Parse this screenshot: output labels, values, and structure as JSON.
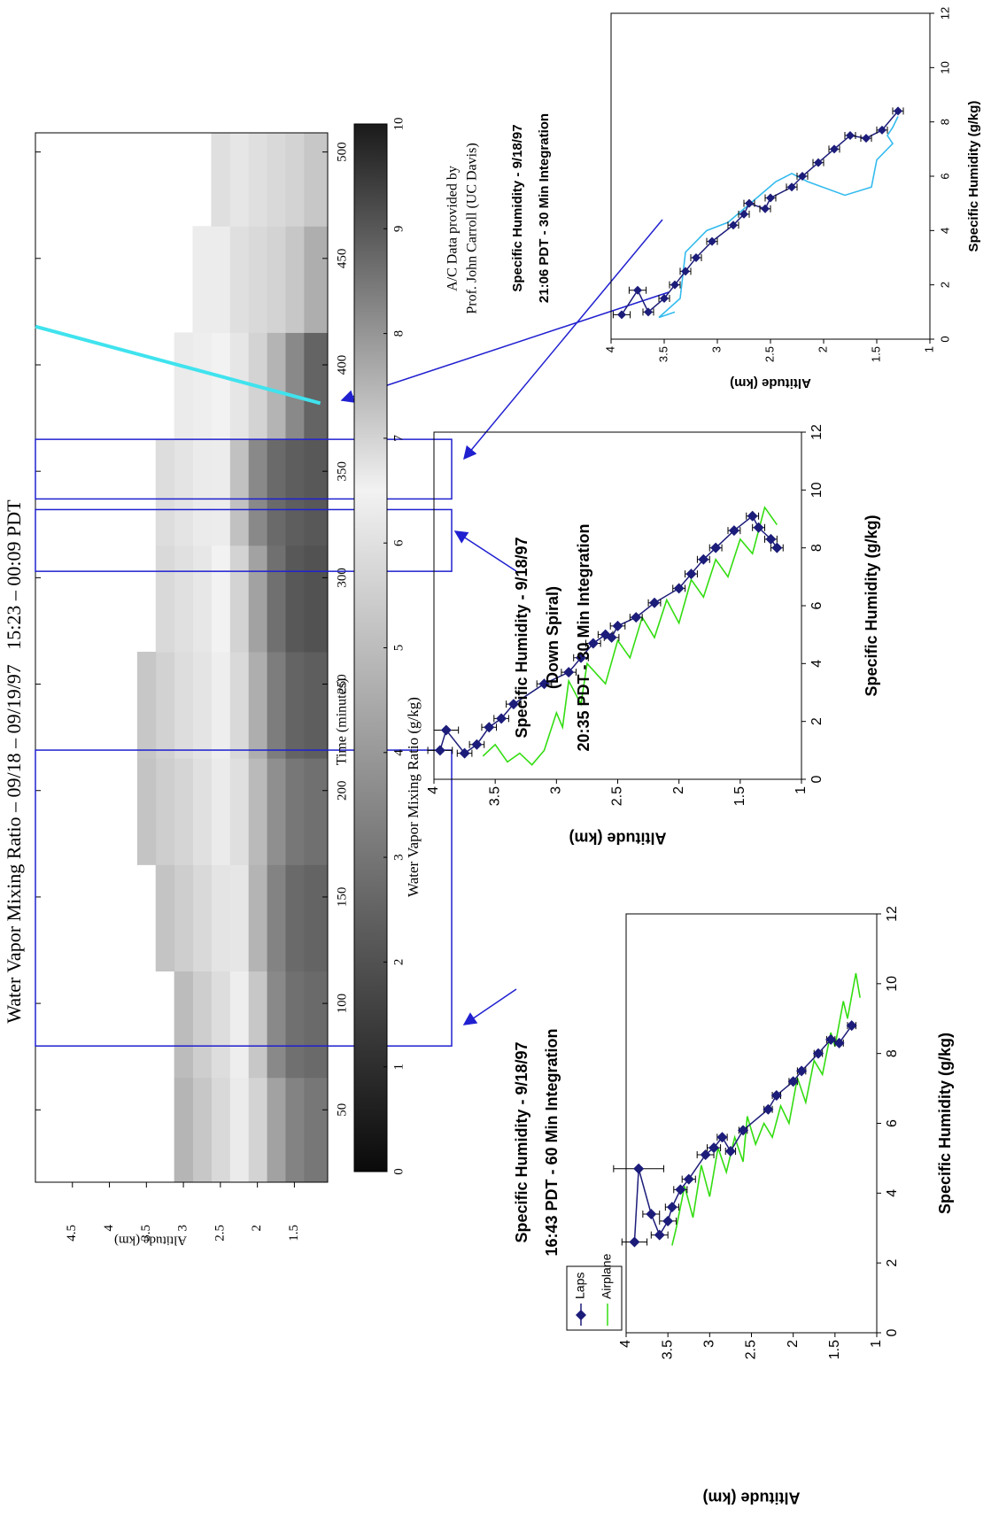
{
  "chart_data": [
    {
      "type": "heatmap",
      "title": "Water Vapor Mixing Ratio – 09/18 – 09/19/97   15:23 – 00:09 PDT",
      "xlabel": "Time (minutes)",
      "ylabel": "Altitude (km)",
      "xlim": [
        16,
        509
      ],
      "ylim": [
        1.05,
        5
      ],
      "xticks": [
        50,
        100,
        150,
        200,
        250,
        300,
        350,
        400,
        450,
        500
      ],
      "yticks": [
        1.5,
        2,
        2.5,
        3,
        3.5,
        4,
        4.5
      ],
      "x": [
        40,
        90,
        140,
        190,
        240,
        290,
        340,
        390,
        440,
        490
      ],
      "y": [
        1.25,
        1.5,
        1.75,
        2.0,
        2.25,
        2.5,
        2.75,
        3.0,
        3.25,
        3.5
      ],
      "z": [
        [
          8.5,
          8.3,
          7.8,
          7.0,
          6.3,
          5.8,
          5.3,
          4.8,
          null,
          null
        ],
        [
          8.7,
          8.6,
          8.2,
          7.2,
          6.4,
          5.9,
          5.5,
          5.0,
          null,
          null
        ],
        [
          8.8,
          8.7,
          8.3,
          7.5,
          6.7,
          6.1,
          5.8,
          5.5,
          5.2,
          null
        ],
        [
          8.6,
          8.5,
          8.1,
          7.4,
          6.8,
          6.3,
          6.0,
          5.7,
          5.5,
          5.2
        ],
        [
          8.9,
          8.8,
          8.4,
          7.6,
          6.9,
          6.4,
          6.1,
          5.9,
          5.6,
          5.3
        ],
        [
          9.1,
          9.0,
          8.6,
          7.8,
          7.0,
          6.5,
          6.2,
          6.0,
          5.8,
          null
        ],
        [
          9.0,
          8.9,
          8.7,
          8.2,
          7.3,
          6.6,
          6.3,
          6.1,
          5.9,
          null
        ],
        [
          8.8,
          8.2,
          7.5,
          7.0,
          6.7,
          6.5,
          6.4,
          6.3,
          null,
          null
        ],
        [
          7.6,
          7.2,
          7.0,
          6.9,
          6.8,
          6.6,
          6.6,
          null,
          null,
          null
        ],
        [
          7.2,
          7.0,
          6.9,
          6.8,
          6.7,
          6.8,
          null,
          null,
          null,
          null
        ]
      ],
      "colorscale": [
        {
          "value": 0,
          "color": "#0a0a0a"
        },
        {
          "value": 6.5,
          "color": "#f2f2f2"
        },
        {
          "value": 10,
          "color": "#1a1a1a"
        }
      ],
      "colorbar": {
        "label": "Water Vapor Mixing Ratio (g/kg)",
        "lim": [
          0,
          10
        ],
        "ticks": [
          0,
          1,
          2,
          3,
          4,
          5,
          6,
          7,
          8,
          9,
          10
        ]
      },
      "windows": [
        {
          "start": 80,
          "end": 219
        },
        {
          "start": 303,
          "end": 332
        },
        {
          "start": 337,
          "end": 365
        }
      ],
      "window_color": "#2020d0",
      "track": {
        "color": "#3fe3ee",
        "x": [
          418,
          382
        ],
        "values": [
          5.0,
          1.15
        ]
      },
      "annotation": [
        "A/C Data provided by",
        "Prof. John Carroll (UC Davis)"
      ],
      "annotation_color": "#3333ff"
    },
    {
      "type": "profile",
      "title": [
        "Specific Humidity - 9/18/97",
        "16:43 PDT - 60 Min Integration"
      ],
      "xlabel": "Specific Humidity (g/kg)",
      "ylabel": "Altitude (km)",
      "xlim": [
        0,
        12
      ],
      "xticks": [
        0,
        2,
        4,
        6,
        8,
        10,
        12
      ],
      "ylim": [
        1,
        4
      ],
      "yticks": [
        1,
        1.5,
        2,
        2.5,
        3,
        3.5,
        4
      ],
      "legend": "upper left",
      "series": [
        {
          "name": "Laps",
          "color": "#1c1c7a",
          "marker": "diamond",
          "x": [
            2.6,
            4.7,
            3.4,
            2.8,
            3.2,
            3.6,
            4.1,
            4.4,
            5.1,
            5.3,
            5.6,
            5.2,
            5.8,
            6.4,
            6.8,
            7.2,
            7.5,
            8.0,
            8.4,
            8.3,
            8.8
          ],
          "values": [
            3.9,
            3.85,
            3.7,
            3.6,
            3.5,
            3.45,
            3.35,
            3.25,
            3.05,
            2.95,
            2.85,
            2.75,
            2.6,
            2.3,
            2.2,
            2.0,
            1.9,
            1.7,
            1.55,
            1.45,
            1.3
          ],
          "errors": [
            0.15,
            0.3,
            0.1,
            0.1,
            0.1,
            0.08,
            0.08,
            0.08,
            0.1,
            0.08,
            0.06,
            0.06,
            0.05,
            0.05,
            0.05,
            0.05,
            0.05,
            0.05,
            0.05,
            0.05,
            0.05
          ]
        },
        {
          "name": "Airplane",
          "color": "#33dd11",
          "x": [
            2.5,
            3.0,
            4.2,
            3.3,
            4.8,
            3.9,
            5.3,
            4.6,
            5.6,
            4.9,
            6.2,
            5.4,
            6.0,
            5.6,
            6.5,
            6.0,
            7.3,
            6.6,
            7.8,
            7.4,
            8.6,
            8.2,
            9.5,
            9.0,
            10.3,
            9.6
          ],
          "values": [
            3.45,
            3.4,
            3.3,
            3.2,
            3.1,
            3.0,
            2.9,
            2.8,
            2.7,
            2.6,
            2.55,
            2.45,
            2.35,
            2.25,
            2.15,
            2.05,
            1.95,
            1.85,
            1.75,
            1.65,
            1.55,
            1.5,
            1.4,
            1.35,
            1.25,
            1.2
          ]
        }
      ]
    },
    {
      "type": "profile",
      "title": [
        "Specific Humidity - 9/18/97",
        "(Down Spiral)",
        "20:35 PDT - 30 Min Integration"
      ],
      "xlabel": "Specific Humidity (g/kg)",
      "ylabel": "Altitude (km)",
      "xlim": [
        0,
        12
      ],
      "xticks": [
        0,
        2,
        4,
        6,
        8,
        10,
        12
      ],
      "ylim": [
        1,
        4
      ],
      "yticks": [
        1,
        1.5,
        2,
        2.5,
        3,
        3.5,
        4
      ],
      "series": [
        {
          "color": "#1c1c7a",
          "marker": "diamond",
          "x": [
            1.0,
            1.7,
            0.9,
            1.2,
            1.8,
            2.1,
            2.6,
            3.3,
            3.7,
            4.2,
            4.7,
            5.0,
            4.9,
            5.3,
            5.6,
            6.1,
            6.6,
            7.1,
            7.6,
            8.0,
            8.6,
            9.1,
            8.7,
            8.3,
            8.0
          ],
          "values": [
            3.95,
            3.9,
            3.75,
            3.65,
            3.55,
            3.45,
            3.35,
            3.1,
            2.9,
            2.8,
            2.7,
            2.6,
            2.55,
            2.5,
            2.35,
            2.2,
            2.0,
            1.9,
            1.8,
            1.7,
            1.55,
            1.4,
            1.35,
            1.25,
            1.2
          ],
          "errors": [
            0.1,
            0.1,
            0.06,
            0.06,
            0.06,
            0.06,
            0.06,
            0.06,
            0.06,
            0.06,
            0.06,
            0.06,
            0.06,
            0.06,
            0.05,
            0.05,
            0.05,
            0.05,
            0.05,
            0.05,
            0.05,
            0.05,
            0.05,
            0.05,
            0.05
          ]
        },
        {
          "color": "#33dd11",
          "x": [
            0.8,
            1.2,
            0.6,
            0.9,
            0.5,
            1.0,
            2.3,
            1.8,
            3.4,
            2.6,
            4.0,
            3.3,
            4.8,
            4.2,
            5.6,
            4.9,
            6.2,
            5.4,
            6.9,
            6.3,
            7.6,
            7.0,
            8.3,
            7.8,
            9.4,
            8.8
          ],
          "values": [
            3.6,
            3.5,
            3.4,
            3.3,
            3.2,
            3.1,
            3.0,
            2.95,
            2.9,
            2.8,
            2.75,
            2.6,
            2.5,
            2.4,
            2.3,
            2.2,
            2.1,
            2.0,
            1.9,
            1.8,
            1.7,
            1.6,
            1.5,
            1.4,
            1.3,
            1.2
          ]
        }
      ]
    },
    {
      "type": "profile",
      "title": [
        "Specific Humidity - 9/18/97",
        "21:06 PDT - 30 Min Integration"
      ],
      "xlabel": "Specific Humidity (g/kg)",
      "ylabel": "Altitude (km)",
      "xlim": [
        0,
        12
      ],
      "xticks": [
        0,
        2,
        4,
        6,
        8,
        10,
        12
      ],
      "ylim": [
        1,
        4
      ],
      "yticks": [
        1,
        1.5,
        2,
        2.5,
        3,
        3.5,
        4
      ],
      "series": [
        {
          "color": "#1c1c7a",
          "marker": "diamond",
          "x": [
            0.9,
            1.8,
            1.0,
            1.5,
            2.0,
            2.5,
            3.0,
            3.6,
            4.2,
            4.6,
            5.0,
            4.8,
            5.2,
            5.6,
            6.0,
            6.5,
            7.0,
            7.5,
            7.4,
            7.7,
            8.4
          ],
          "values": [
            3.9,
            3.75,
            3.65,
            3.5,
            3.4,
            3.3,
            3.2,
            3.05,
            2.85,
            2.75,
            2.7,
            2.55,
            2.5,
            2.3,
            2.2,
            2.05,
            1.9,
            1.75,
            1.6,
            1.45,
            1.3
          ],
          "errors": [
            0.08,
            0.08,
            0.05,
            0.05,
            0.05,
            0.05,
            0.05,
            0.05,
            0.05,
            0.05,
            0.05,
            0.05,
            0.05,
            0.05,
            0.05,
            0.05,
            0.05,
            0.05,
            0.05,
            0.05,
            0.05
          ]
        },
        {
          "color": "#33bbee",
          "x": [
            1.0,
            0.8,
            1.5,
            3.2,
            4.0,
            4.3,
            4.8,
            5.3,
            5.8,
            6.1,
            5.8,
            5.3,
            5.6,
            6.6,
            7.2,
            7.5,
            7.8,
            8.2
          ],
          "values": [
            3.4,
            3.55,
            3.35,
            3.3,
            3.1,
            2.9,
            2.75,
            2.6,
            2.45,
            2.3,
            2.15,
            1.8,
            1.55,
            1.5,
            1.35,
            1.4,
            1.35,
            1.3
          ]
        }
      ]
    }
  ]
}
